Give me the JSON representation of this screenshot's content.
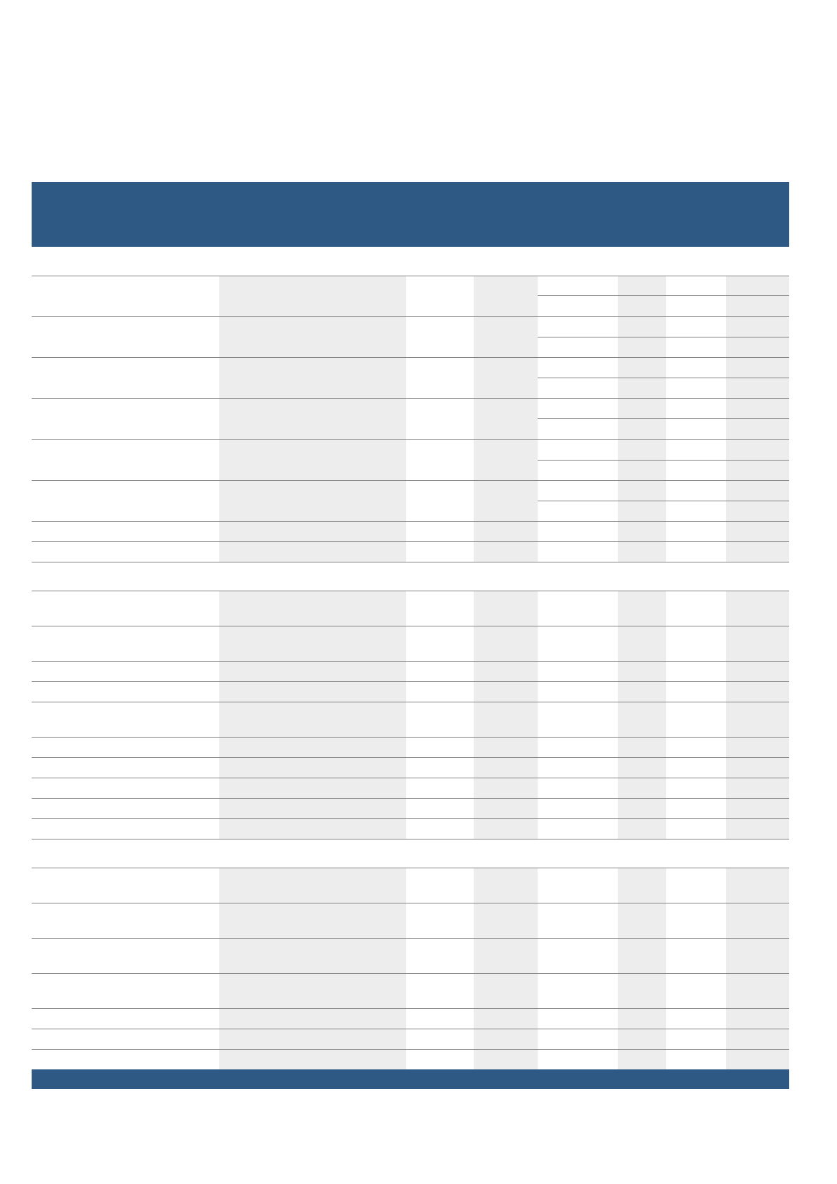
{
  "colors": {
    "header_bar": "#2f5985",
    "footer_bar": "#2f5985",
    "shaded_column": "#ededed",
    "rule": "#808080"
  },
  "table": {
    "header_text": "",
    "sections": [
      {
        "rows": 8,
        "split_rows": 6
      },
      {
        "rows": 10
      },
      {
        "rows": 7
      }
    ]
  }
}
